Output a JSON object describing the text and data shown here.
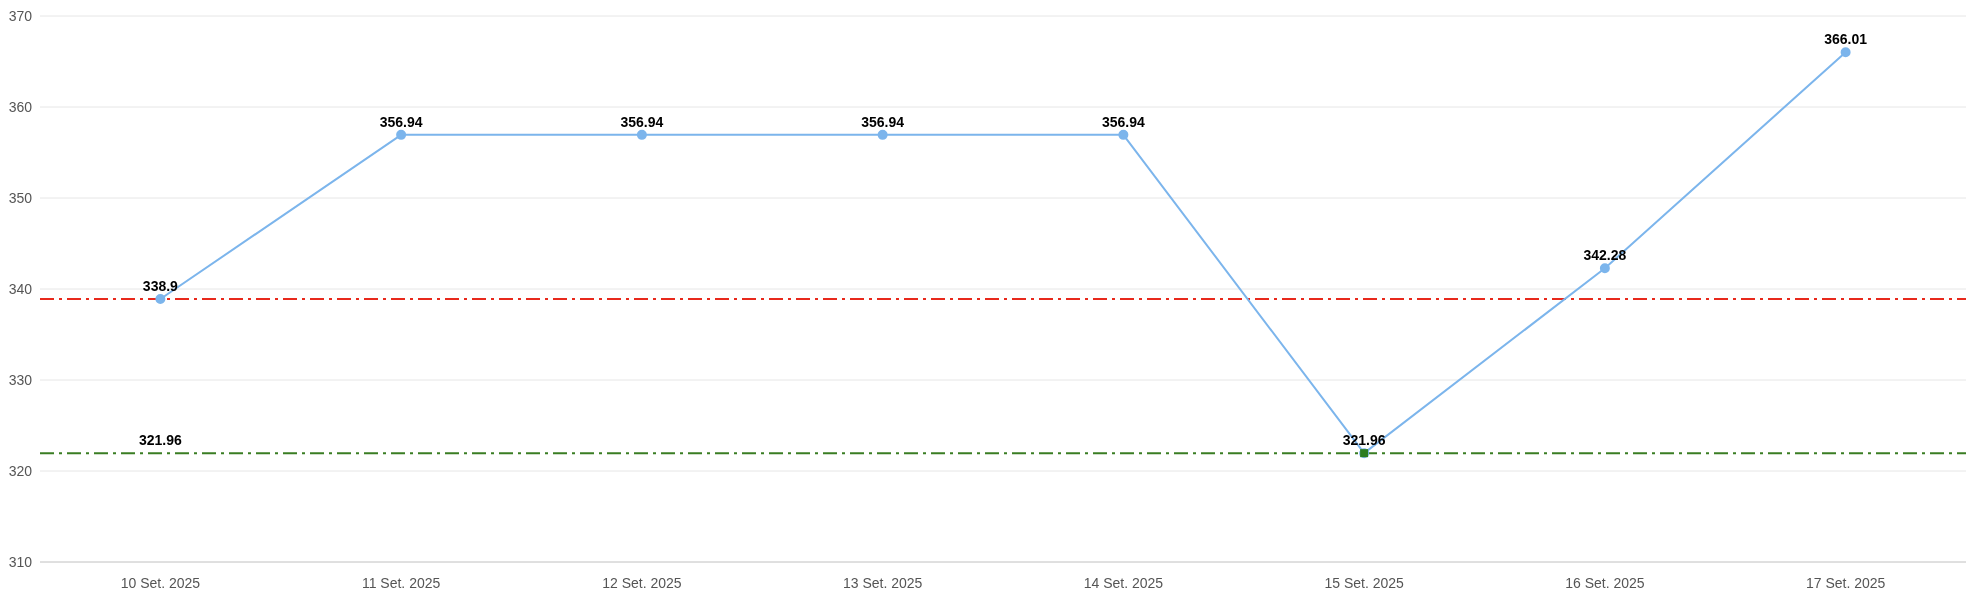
{
  "chart_data": {
    "type": "line",
    "categories": [
      "10 Set. 2025",
      "11 Set. 2025",
      "12 Set. 2025",
      "13 Set. 2025",
      "14 Set. 2025",
      "15 Set. 2025",
      "16 Set. 2025",
      "17 Set. 2025"
    ],
    "series": [
      {
        "color": "#7cb5ec",
        "marker": "circle",
        "values": [
          338.9,
          356.94,
          356.94,
          356.94,
          356.94,
          321.96,
          342.28,
          366.01
        ],
        "value_labels": [
          "338.9",
          "356.94",
          "356.94",
          "356.94",
          "356.94",
          "321.96",
          "342.28",
          "366.01"
        ]
      },
      {
        "type": "scatter",
        "color": "#2e7d1f",
        "marker": "square",
        "x": [
          "15 Set. 2025"
        ],
        "values": [
          321.96
        ]
      }
    ],
    "ref_lines": [
      {
        "axis": "y",
        "value": 338.9,
        "color": "#e8291c",
        "line_style": "dashdot"
      },
      {
        "axis": "y",
        "value": 321.96,
        "label": "321.96",
        "color": "#3a7d23",
        "line_style": "dashdot"
      }
    ],
    "ylim": [
      310,
      370
    ],
    "yticks": [
      310,
      320,
      330,
      340,
      350,
      360,
      370
    ],
    "grid": "y",
    "legend": false
  }
}
